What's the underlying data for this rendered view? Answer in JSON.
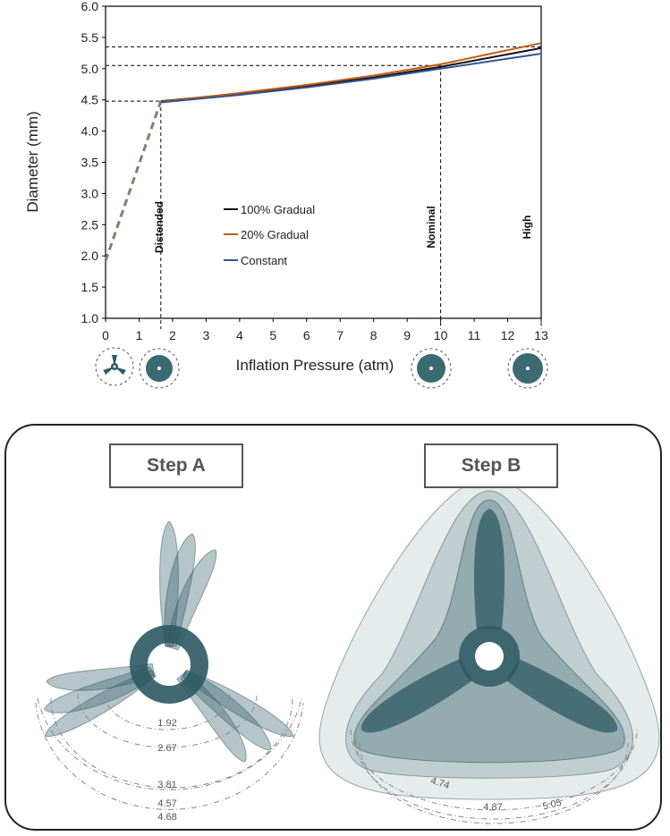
{
  "chart_data": {
    "type": "line",
    "xlabel": "Inflation Pressure (atm)",
    "ylabel": "Diameter (mm)",
    "xlim": [
      0,
      13
    ],
    "ylim": [
      1.0,
      6.0
    ],
    "x_ticks": [
      "0",
      "1",
      "2",
      "3",
      "4",
      "5",
      "6",
      "7",
      "8",
      "9",
      "10",
      "11",
      "12",
      "13"
    ],
    "y_ticks": [
      "1.0",
      "1.5",
      "2.0",
      "2.5",
      "3.0",
      "3.5",
      "4.0",
      "4.5",
      "5.0",
      "5.5",
      "6.0"
    ],
    "grid": false,
    "legend_position": "center-left",
    "series": [
      {
        "name": "100% Gradual",
        "color": "#111111",
        "x": [
          1.65,
          4,
          6,
          8,
          10,
          13
        ],
        "y": [
          4.48,
          4.6,
          4.72,
          4.86,
          5.03,
          5.33
        ]
      },
      {
        "name": "20% Gradual",
        "color": "#c55a11",
        "x": [
          1.65,
          4,
          6,
          8,
          10,
          13
        ],
        "y": [
          4.47,
          4.61,
          4.74,
          4.89,
          5.07,
          5.41
        ]
      },
      {
        "name": "Constant",
        "color": "#2f5597",
        "x": [
          1.65,
          4,
          6,
          8,
          10,
          13
        ],
        "y": [
          4.46,
          4.58,
          4.7,
          4.84,
          5.0,
          5.24
        ]
      }
    ],
    "initial_segment": {
      "x": [
        0,
        1.65
      ],
      "y": [
        1.92,
        4.48
      ],
      "color": "#8c7b70",
      "style": "dashed"
    },
    "reference_lines": [
      {
        "label": "Distended",
        "x": 1.65,
        "y": 4.48
      },
      {
        "label": "Nominal",
        "x": 10,
        "y": 5.05
      },
      {
        "label": "High",
        "x": 13,
        "y": 5.35
      }
    ]
  },
  "panel": {
    "step_a_label": "Step A",
    "step_b_label": "Step B",
    "step_a_dimensions": [
      "1.92",
      "2.67",
      "3.81",
      "4.57",
      "4.68"
    ],
    "step_b_dimensions": [
      "4.74",
      "4.87",
      "5.05"
    ],
    "shape_color": "#2e5963"
  }
}
